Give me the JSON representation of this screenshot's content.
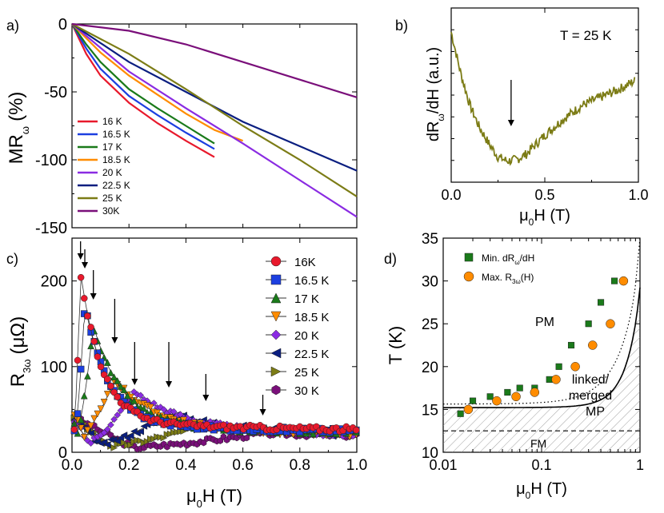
{
  "chart_data": [
    {
      "panel": "a)",
      "type": "line",
      "ylabel": "MR",
      "ylabel_sub": "ω",
      "ylabel_unit": "(%)",
      "xlim": [
        0,
        1.0
      ],
      "ylim": [
        -150,
        0
      ],
      "yticks": [
        "0",
        "-50",
        "-100",
        "-150"
      ],
      "legend": "lower-left",
      "series": [
        {
          "name": "16 K",
          "color": "#e8192c",
          "x": [
            0,
            0.05,
            0.1,
            0.2,
            0.3,
            0.4,
            0.5
          ],
          "y": [
            0,
            -22,
            -38,
            -58,
            -73,
            -86,
            -98
          ]
        },
        {
          "name": "16.5 K",
          "color": "#1c3fe0",
          "x": [
            0,
            0.05,
            0.1,
            0.2,
            0.3,
            0.4,
            0.5
          ],
          "y": [
            0,
            -18,
            -33,
            -53,
            -67,
            -80,
            -92
          ]
        },
        {
          "name": "17 K",
          "color": "#1a7a1a",
          "x": [
            0,
            0.05,
            0.1,
            0.2,
            0.3,
            0.4,
            0.5
          ],
          "y": [
            0,
            -15,
            -28,
            -48,
            -62,
            -75,
            -88
          ]
        },
        {
          "name": "18.5 K",
          "color": "#ff8c00",
          "x": [
            0,
            0.1,
            0.2,
            0.3,
            0.4,
            0.5,
            0.6
          ],
          "y": [
            0,
            -21,
            -38,
            -52,
            -66,
            -78,
            -86
          ]
        },
        {
          "name": "20 K",
          "color": "#8a2be2",
          "x": [
            0,
            0.2,
            0.4,
            0.6,
            0.8,
            1.0
          ],
          "y": [
            0,
            -35,
            -62,
            -88,
            -115,
            -142
          ]
        },
        {
          "name": "22.5 K",
          "color": "#0a1e80",
          "x": [
            0,
            0.2,
            0.4,
            0.6,
            0.8,
            1.0
          ],
          "y": [
            0,
            -28,
            -50,
            -72,
            -90,
            -108
          ]
        },
        {
          "name": "25 K",
          "color": "#7c7c16",
          "x": [
            0,
            0.2,
            0.4,
            0.6,
            0.8,
            1.0
          ],
          "y": [
            0,
            -22,
            -48,
            -75,
            -100,
            -127
          ]
        },
        {
          "name": "30K",
          "color": "#7a0f7a",
          "x": [
            0,
            0.2,
            0.4,
            0.6,
            0.8,
            1.0
          ],
          "y": [
            0,
            -5,
            -15,
            -28,
            -41,
            -54
          ]
        }
      ]
    },
    {
      "panel": "b)",
      "type": "line",
      "annotation": "T = 25 K",
      "ylabel": "dR",
      "ylabel_sub": "ω",
      "ylabel_rest": "/dH (a.u.)",
      "xlabel": "μ",
      "xlabel_sub": "0",
      "xlabel_rest": "H (T)",
      "xlim": [
        0,
        1.0
      ],
      "xticks": [
        "0.0",
        "0.5",
        "1.0"
      ],
      "arrow_x": 0.32,
      "series": [
        {
          "color": "#7c7c16",
          "x": [
            0.0,
            0.02,
            0.05,
            0.1,
            0.15,
            0.2,
            0.25,
            0.3,
            0.35,
            0.4,
            0.5,
            0.6,
            0.7,
            0.8,
            0.9,
            0.98
          ],
          "y": [
            1.0,
            0.88,
            0.7,
            0.46,
            0.3,
            0.18,
            0.08,
            0.05,
            0.06,
            0.1,
            0.24,
            0.36,
            0.46,
            0.52,
            0.58,
            0.64
          ]
        }
      ]
    },
    {
      "panel": "c)",
      "type": "scatter",
      "ylabel": "R",
      "ylabel_sub": "3ω",
      "ylabel_unit": "(μΩ)",
      "xlabel": "μ",
      "xlabel_sub": "0",
      "xlabel_rest": "H (T)",
      "xlim": [
        0,
        1.0
      ],
      "ylim": [
        0,
        250
      ],
      "xticks": [
        "0.0",
        "0.2",
        "0.4",
        "0.6",
        "0.8",
        "1.0"
      ],
      "yticks": [
        "0",
        "100",
        "200"
      ],
      "legend": "top-right",
      "arrows_x": [
        0.03,
        0.045,
        0.075,
        0.15,
        0.22,
        0.34,
        0.47,
        0.67
      ],
      "series": [
        {
          "name": "16K",
          "color": "#e8192c",
          "marker": "circle",
          "peak_x": 0.03,
          "peak_y": 210,
          "min_y": 2
        },
        {
          "name": "16.5 K",
          "color": "#1c3fe0",
          "marker": "square",
          "peak_x": 0.045,
          "peak_y": 172,
          "min_y": 3
        },
        {
          "name": "17 K",
          "color": "#1a7a1a",
          "marker": "triangle-up",
          "peak_x": 0.075,
          "peak_y": 148,
          "min_y": 5
        },
        {
          "name": "18.5 K",
          "color": "#ff8c00",
          "marker": "triangle-down",
          "peak_x": 0.15,
          "peak_y": 85,
          "min_y": 10
        },
        {
          "name": "20 K",
          "color": "#8a2be2",
          "marker": "diamond",
          "peak_x": 0.22,
          "peak_y": 70,
          "min_y": 2
        },
        {
          "name": "22.5 K",
          "color": "#0a1e80",
          "marker": "triangle-left",
          "peak_x": 0.34,
          "peak_y": 45,
          "min_y": 2
        },
        {
          "name": "25 K",
          "color": "#7c7c16",
          "marker": "triangle-right",
          "peak_x": 0.47,
          "peak_y": 32,
          "min_y": 2
        },
        {
          "name": "30 K",
          "color": "#7a0f7a",
          "marker": "hexagon",
          "peak_x": 0.67,
          "peak_y": 22,
          "min_y": 2
        }
      ]
    },
    {
      "panel": "d)",
      "type": "scatter",
      "ylabel": "T (K)",
      "xlabel": "μ",
      "xlabel_sub": "0",
      "xlabel_rest": "H (T)",
      "xscale": "log",
      "xlim": [
        0.01,
        1
      ],
      "ylim": [
        10,
        35
      ],
      "xticks": [
        "0.01",
        "0.1",
        "1"
      ],
      "yticks": [
        "10",
        "15",
        "20",
        "25",
        "30",
        "35"
      ],
      "legend": "top-left",
      "region_labels": {
        "pm": "PM",
        "linked1": "linked/",
        "linked2": "merged",
        "linked3": "MP",
        "fm": "FM"
      },
      "fm_line_T": 12.5,
      "series": [
        {
          "name_main": "Min. dR",
          "name_sub": "ω",
          "name_rest": "/dH",
          "color": "#1a7a1a",
          "marker": "square",
          "x": [
            0.015,
            0.02,
            0.03,
            0.045,
            0.06,
            0.085,
            0.12,
            0.15,
            0.2,
            0.3,
            0.4,
            0.55
          ],
          "y": [
            14.5,
            16.0,
            16.5,
            17.0,
            17.5,
            17.5,
            18.5,
            20.0,
            22.5,
            25.0,
            27.5,
            30.0
          ]
        },
        {
          "name_main": "Max. R",
          "name_sub": "3ω",
          "name_rest": "(H)",
          "color": "#ff8c00",
          "marker": "circle",
          "x": [
            0.018,
            0.035,
            0.055,
            0.085,
            0.14,
            0.22,
            0.33,
            0.5,
            0.68
          ],
          "y": [
            15.0,
            16.0,
            16.5,
            17.0,
            18.5,
            20.0,
            22.5,
            25.0,
            30.0
          ]
        }
      ]
    }
  ]
}
